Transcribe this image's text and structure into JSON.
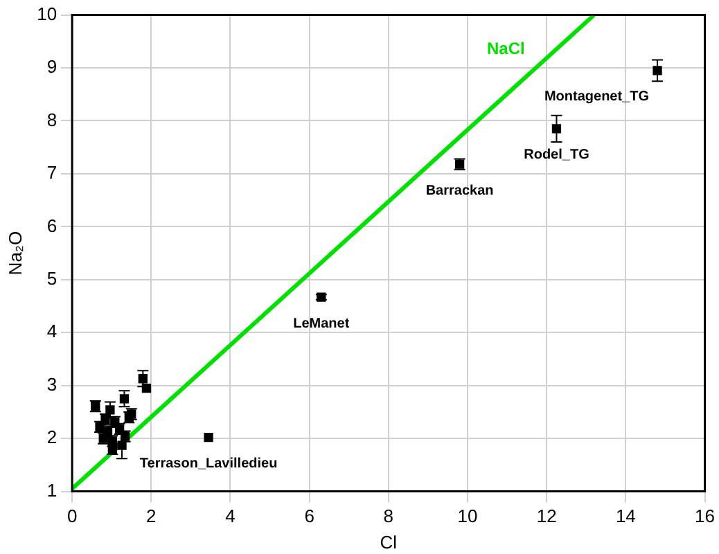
{
  "chart_data": {
    "type": "scatter",
    "xlabel": "Cl",
    "ylabel": "Na₂O",
    "xlim": [
      0,
      16
    ],
    "ylim": [
      1,
      10
    ],
    "xticks": [
      0,
      2,
      4,
      6,
      8,
      10,
      12,
      14,
      16
    ],
    "yticks": [
      1,
      2,
      3,
      4,
      5,
      6,
      7,
      8,
      9,
      10
    ],
    "grid": true,
    "legend": false,
    "marker": "square",
    "series": [
      {
        "color": "#000000",
        "x": [
          14.8,
          12.25,
          9.8,
          6.3,
          3.45,
          0.59,
          1.79,
          1.88,
          1.32,
          1.5,
          0.7,
          0.84,
          0.96,
          1.08,
          0.79,
          1.02,
          1.26,
          1.2,
          1.34,
          1.02,
          0.9,
          1.44
        ],
        "values": [
          8.95,
          7.85,
          7.18,
          4.67,
          2.02,
          2.61,
          3.13,
          2.95,
          2.75,
          2.46,
          2.22,
          2.36,
          2.54,
          2.31,
          2.0,
          1.95,
          1.87,
          2.18,
          2.04,
          1.8,
          2.13,
          2.4
        ],
        "errors": [
          0.2,
          0.25,
          0.1,
          0.05,
          null,
          0.1,
          0.15,
          null,
          0.15,
          0.1,
          0.1,
          0.1,
          0.15,
          0.1,
          0.1,
          0.1,
          0.25,
          0.1,
          0.1,
          0.1,
          0.1,
          0.1
        ]
      },
      {
        "type": "line",
        "name": "NaCl",
        "color": "#00e000",
        "x": [
          0,
          13.2
        ],
        "values": [
          1.05,
          10
        ],
        "marker": "none",
        "line_style": "solid"
      }
    ],
    "annotations": [
      {
        "text": "Montagenet_TG",
        "x": 14.8,
        "y": 8.95
      },
      {
        "text": "Rodel_TG",
        "x": 12.25,
        "y": 7.85
      },
      {
        "text": "Barrackan",
        "x": 9.8,
        "y": 7.18
      },
      {
        "text": "LeManet",
        "x": 6.3,
        "y": 4.67
      },
      {
        "text": "Terrason_Lavilledieu",
        "x": 3.45,
        "y": 2.02
      }
    ]
  }
}
